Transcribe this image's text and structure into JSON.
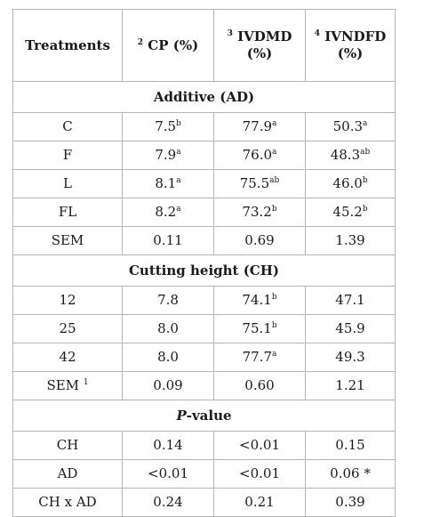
{
  "header": {
    "col1": "Treatments",
    "col2_sup": "2",
    "col2": "CP (%)",
    "col3_sup": "3",
    "col3_line1": "IVDMD",
    "col3_line2": "(%)",
    "col4_sup": "4",
    "col4_line1": "IVNDFD",
    "col4_line2": "(%)"
  },
  "sections": {
    "additive": "Additive (AD)",
    "cutting": "Cutting height (CH)",
    "pvalue_italic": "P",
    "pvalue_rest": "-value"
  },
  "additive_rows": [
    {
      "t": "C",
      "t_sup": "",
      "cp": "7.5",
      "cp_sup": "b",
      "ivdmd": "77.9",
      "ivdmd_sup": "a",
      "ivndfd": "50.3",
      "ivndfd_sup": "a"
    },
    {
      "t": "F",
      "t_sup": "",
      "cp": "7.9",
      "cp_sup": "a",
      "ivdmd": "76.0",
      "ivdmd_sup": "a",
      "ivndfd": "48.3",
      "ivndfd_sup": "ab"
    },
    {
      "t": "L",
      "t_sup": "",
      "cp": "8.1",
      "cp_sup": "a",
      "ivdmd": "75.5",
      "ivdmd_sup": "ab",
      "ivndfd": "46.0",
      "ivndfd_sup": "b"
    },
    {
      "t": "FL",
      "t_sup": "",
      "cp": "8.2",
      "cp_sup": "a",
      "ivdmd": "73.2",
      "ivdmd_sup": "b",
      "ivndfd": "45.2",
      "ivndfd_sup": "b"
    },
    {
      "t": "SEM",
      "t_sup": "",
      "cp": "0.11",
      "cp_sup": "",
      "ivdmd": "0.69",
      "ivdmd_sup": "",
      "ivndfd": "1.39",
      "ivndfd_sup": ""
    }
  ],
  "cutting_rows": [
    {
      "t": "12",
      "t_sup": "",
      "cp": "7.8",
      "cp_sup": "",
      "ivdmd": "74.1",
      "ivdmd_sup": "b",
      "ivndfd": "47.1",
      "ivndfd_sup": ""
    },
    {
      "t": "25",
      "t_sup": "",
      "cp": "8.0",
      "cp_sup": "",
      "ivdmd": "75.1",
      "ivdmd_sup": "b",
      "ivndfd": "45.9",
      "ivndfd_sup": ""
    },
    {
      "t": "42",
      "t_sup": "",
      "cp": "8.0",
      "cp_sup": "",
      "ivdmd": "77.7",
      "ivdmd_sup": "a",
      "ivndfd": "49.3",
      "ivndfd_sup": ""
    },
    {
      "t": "SEM ",
      "t_sup": "1",
      "cp": "0.09",
      "cp_sup": "",
      "ivdmd": "0.60",
      "ivdmd_sup": "",
      "ivndfd": "1.21",
      "ivndfd_sup": ""
    }
  ],
  "pvalue_rows": [
    {
      "t": "CH",
      "t_sup": "",
      "cp": "0.14",
      "cp_sup": "",
      "ivdmd": "<0.01",
      "ivdmd_sup": "",
      "ivndfd": "0.15",
      "ivndfd_sup": ""
    },
    {
      "t": "AD",
      "t_sup": "",
      "cp": "<0.01",
      "cp_sup": "",
      "ivdmd": "<0.01",
      "ivdmd_sup": "",
      "ivndfd": "0.06 *",
      "ivndfd_sup": ""
    },
    {
      "t": "CH x AD",
      "t_sup": "",
      "cp": "0.24",
      "cp_sup": "",
      "ivdmd": "0.21",
      "ivdmd_sup": "",
      "ivndfd": "0.39",
      "ivndfd_sup": ""
    }
  ]
}
